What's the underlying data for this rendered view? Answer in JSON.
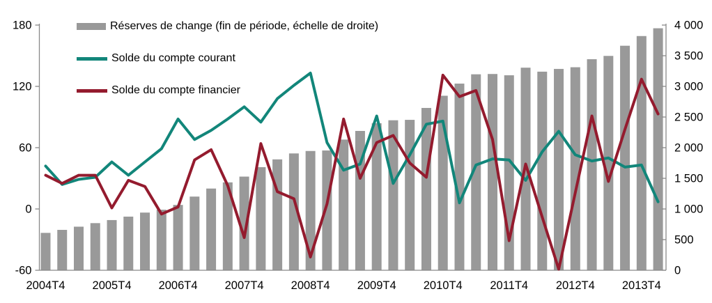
{
  "chart_data": {
    "type": "bar",
    "subtype": "combo-bar-lines",
    "quarters": [
      "2004T4",
      "2005T1",
      "2005T2",
      "2005T3",
      "2005T4",
      "2006T1",
      "2006T2",
      "2006T3",
      "2006T4",
      "2007T1",
      "2007T2",
      "2007T3",
      "2007T4",
      "2008T1",
      "2008T2",
      "2008T3",
      "2008T4",
      "2009T1",
      "2009T2",
      "2009T3",
      "2009T4",
      "2010T1",
      "2010T2",
      "2010T3",
      "2010T4",
      "2011T1",
      "2011T2",
      "2011T3",
      "2011T4",
      "2012T1",
      "2012T2",
      "2012T3",
      "2012T4",
      "2013T1",
      "2013T2",
      "2013T3",
      "2013T4",
      "2014T1"
    ],
    "x_tick_labels": [
      "2004T4",
      "2005T4",
      "2006T4",
      "2007T4",
      "2008T4",
      "2009T4",
      "2010T4",
      "2011T4",
      "2012T4",
      "2013T4"
    ],
    "x_tick_indices": [
      0,
      4,
      8,
      12,
      16,
      20,
      24,
      28,
      32,
      36
    ],
    "series": [
      {
        "name": "Réserves de change (fin de période, échelle de droite)",
        "type": "bar",
        "axis": "right",
        "color": "#999999",
        "values": [
          610,
          659,
          711,
          769,
          819,
          875,
          941,
          988,
          1066,
          1202,
          1333,
          1434,
          1528,
          1682,
          1809,
          1906,
          1946,
          1954,
          2132,
          2273,
          2399,
          2447,
          2454,
          2648,
          2847,
          3045,
          3197,
          3202,
          3181,
          3305,
          3240,
          3285,
          3312,
          3443,
          3497,
          3663,
          3821,
          3948
        ]
      },
      {
        "name": "Solde du compte courant",
        "type": "line",
        "axis": "left",
        "color": "#12867A",
        "values": [
          42,
          24,
          29,
          31,
          46,
          33,
          46,
          59,
          88,
          68,
          77,
          88,
          100,
          85,
          108,
          121,
          133,
          65,
          38,
          44,
          91,
          25,
          53,
          83,
          86,
          6,
          43,
          49,
          48,
          28,
          56,
          76,
          53,
          47,
          50,
          41,
          43,
          7
        ]
      },
      {
        "name": "Solde du compte financier",
        "type": "line",
        "axis": "left",
        "color": "#941B2E",
        "values": [
          33,
          25,
          33,
          33,
          1,
          28,
          22,
          -5,
          2,
          48,
          58,
          23,
          -28,
          64,
          17,
          10,
          -47,
          5,
          88,
          30,
          65,
          72,
          45,
          31,
          131,
          110,
          116,
          68,
          -31,
          44,
          -8,
          -59,
          16,
          91,
          27,
          78,
          127,
          93
        ]
      }
    ],
    "left_axis": {
      "min": -60,
      "max": 180,
      "tick_labels": [
        "180",
        "120",
        "60",
        "0",
        "-60"
      ],
      "tick_values": [
        180,
        120,
        60,
        0,
        -60
      ]
    },
    "right_axis": {
      "min": 0,
      "max": 4000,
      "tick_labels": [
        "4 000",
        "3 500",
        "3 000",
        "2 500",
        "2 000",
        "1 500",
        "1 000",
        "500",
        "0"
      ],
      "tick_values": [
        4000,
        3500,
        3000,
        2500,
        2000,
        1500,
        1000,
        500,
        0
      ]
    },
    "grid": "off",
    "legend_position": "top-left-inside",
    "axis_color": "#898989",
    "text_color": "#000000"
  }
}
